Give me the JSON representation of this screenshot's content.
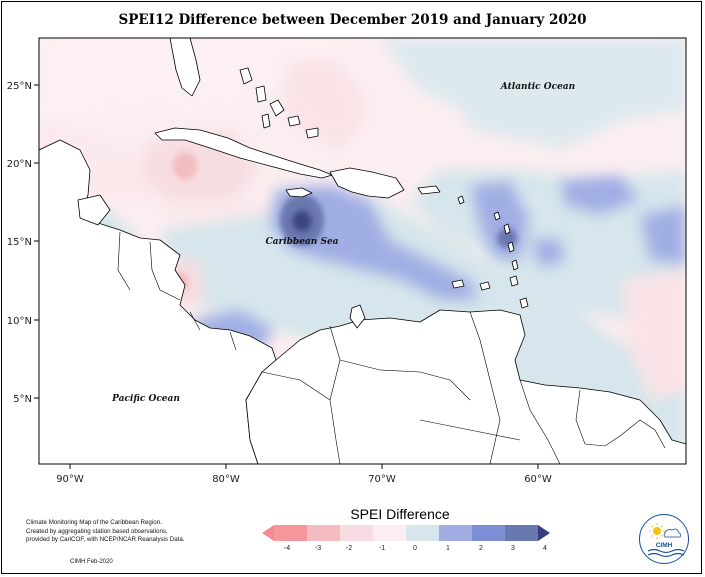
{
  "title": "SPEI12 Difference between December 2019 and January 2020",
  "map": {
    "lon_labels": [
      "90°W",
      "80°W",
      "70°W",
      "60°W"
    ],
    "lat_labels": [
      "25°N",
      "20°N",
      "15°N",
      "10°N",
      "5°N"
    ],
    "labels": {
      "atlantic": "Atlantic Ocean",
      "caribbean": "Caribbean Sea",
      "pacific": "Pacific Ocean"
    },
    "ocean_color": "#ffffff",
    "land_outline_color": "#000000"
  },
  "legend": {
    "title": "SPEI Difference",
    "ticks": [
      "-4",
      "-3",
      "-2",
      "-1",
      "0",
      "1",
      "2",
      "3",
      "4"
    ],
    "colors": [
      "#f4979b",
      "#f2bcc0",
      "#f7dde1",
      "#fbeef0",
      "#d6e6ec",
      "#a0aee4",
      "#7d8fd4",
      "#6a78b0",
      "#3c4480"
    ],
    "below_color": "#f48a8f",
    "above_color": "#3a3c80"
  },
  "credit": {
    "lines": [
      "Climate Monitoring Map of the Caribbean Region.",
      "Created by aggregating station based observations,",
      "provided by CariCOF, with NCEP/NCAR Reanalysis Data."
    ],
    "date": "CIMH Feb-2020"
  },
  "logo": {
    "text": "CIMH",
    "icon": "cimh-logo-icon"
  }
}
